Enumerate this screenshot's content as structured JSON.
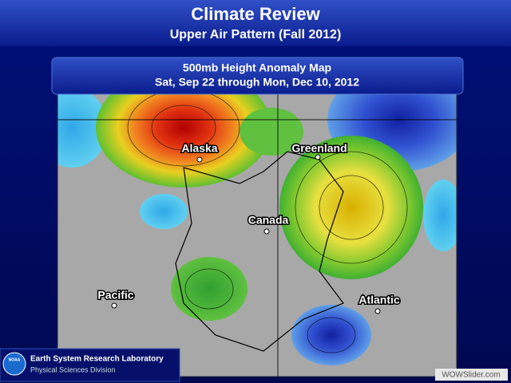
{
  "header": {
    "title": "Climate Review",
    "subtitle": "Upper Air Pattern (Fall 2012)"
  },
  "map": {
    "title": "500mb Height Anomaly Map",
    "date_range": "Sat, Sep 22 through Mon, Dec 10, 2012",
    "labels": [
      "Alaska",
      "Greenland",
      "Canada",
      "Pacific",
      "Atlantic"
    ]
  },
  "footer": {
    "logo": "NOAA",
    "lab": "Earth System Research Laboratory",
    "division": "Physical Sciences Division"
  },
  "watermark": "WOWSlider.com"
}
